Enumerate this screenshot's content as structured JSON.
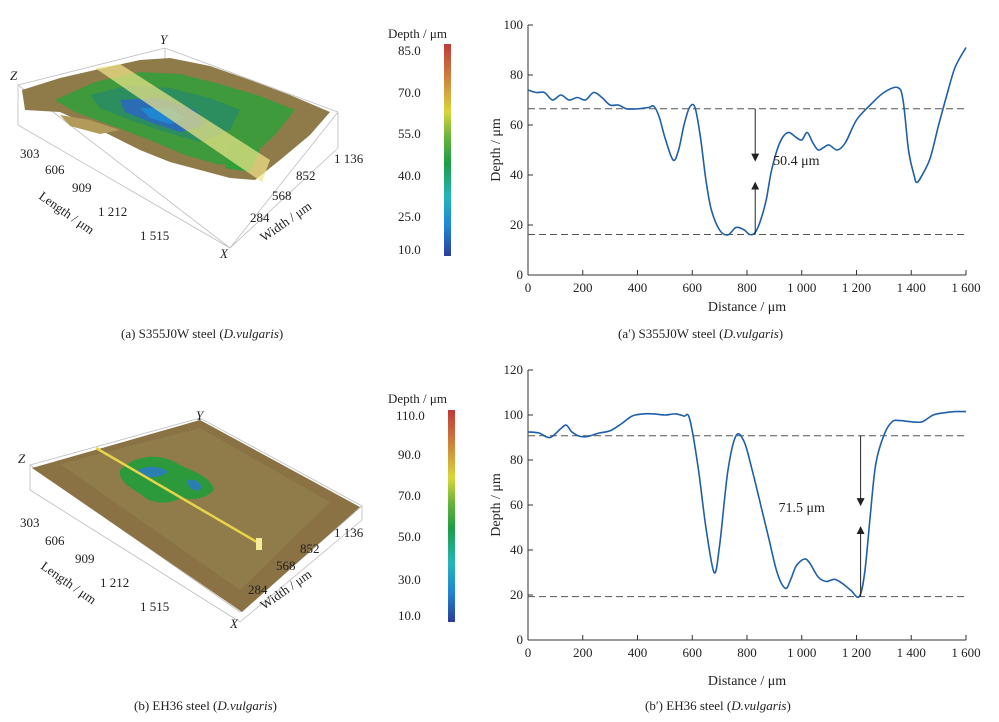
{
  "panels3d": [
    {
      "caption_pre": "(a) S355J0W steel (",
      "caption_em": "D.vulgaris",
      "caption_post": ")",
      "axis_z": "Z",
      "axis_y": "Y",
      "axis_x": "X",
      "length_label": "Length / μm",
      "width_label": "Width / μm",
      "length_ticks": [
        "303",
        "606",
        "909",
        "1 212",
        "1 515"
      ],
      "width_ticks": [
        "284",
        "568",
        "852",
        "1 136"
      ],
      "colorbar_title": "Depth / μm",
      "colorbar_ticks": [
        "85.0",
        "70.0",
        "55.0",
        "40.0",
        "25.0",
        "10.0"
      ]
    },
    {
      "caption_pre": "(b) EH36 steel (",
      "caption_em": "D.vulgaris",
      "caption_post": ")",
      "axis_z": "Z",
      "axis_y": "Y",
      "axis_x": "X",
      "length_label": "Length / μm",
      "width_label": "Width / μm",
      "length_ticks": [
        "303",
        "606",
        "909",
        "1 212",
        "1 515"
      ],
      "width_ticks": [
        "284",
        "568",
        "852",
        "1 136"
      ],
      "colorbar_title": "Depth / μm",
      "colorbar_ticks": [
        "110.0",
        "90.0",
        "70.0",
        "50.0",
        "30.0",
        "10.0"
      ]
    }
  ],
  "chart_data": [
    {
      "type": "line",
      "caption_pre": "(a′) S355J0W steel (",
      "caption_em": "D.vulgaris",
      "caption_post": ")",
      "xlabel": "Distance / μm",
      "ylabel": "Depth / μm",
      "xlim": [
        0,
        1600
      ],
      "ylim": [
        0,
        100
      ],
      "xticks": [
        0,
        200,
        400,
        600,
        800,
        1000,
        1200,
        1400,
        1600
      ],
      "xtick_labels": [
        "0",
        "200",
        "400",
        "600",
        "800",
        "1 000",
        "1 200",
        "1 400",
        "1 600"
      ],
      "yticks": [
        0,
        20,
        40,
        60,
        80,
        100
      ],
      "ytick_labels": [
        "0",
        "20",
        "40",
        "60",
        "80",
        "100"
      ],
      "grid": false,
      "ref_lines": [
        66.5,
        16.2
      ],
      "arrow_x": 830,
      "annotation": "50.4 μm",
      "annotation_pos": [
        980,
        44
      ],
      "series": [
        {
          "x": [
            0,
            30,
            60,
            90,
            120,
            150,
            180,
            210,
            240,
            270,
            300,
            330,
            360,
            400,
            440,
            460,
            480,
            500,
            530,
            550,
            570,
            590,
            610,
            630,
            650,
            670,
            700,
            730,
            760,
            790,
            810,
            830,
            850,
            870,
            890,
            920,
            950,
            980,
            1000,
            1020,
            1040,
            1060,
            1080,
            1100,
            1130,
            1160,
            1200,
            1250,
            1300,
            1350,
            1370,
            1390,
            1410,
            1420,
            1440,
            1470,
            1500,
            1530,
            1560,
            1600
          ],
          "y": [
            74,
            73,
            73,
            70,
            72,
            70,
            71,
            70,
            73,
            71,
            68,
            68,
            66.5,
            66.5,
            67,
            67.5,
            63,
            55,
            46,
            50,
            60,
            67,
            67,
            55,
            38,
            26,
            18,
            16,
            19,
            18,
            16.2,
            17,
            22,
            30,
            42,
            53,
            57,
            55,
            54,
            57,
            53,
            50,
            51,
            52,
            50,
            53,
            62,
            68,
            73,
            75,
            70,
            50,
            40,
            37,
            40,
            47,
            60,
            72,
            83,
            91
          ]
        }
      ]
    },
    {
      "type": "line",
      "caption_pre": "(b′) EH36 steel (",
      "caption_em": "D.vulgaris",
      "caption_post": ")",
      "xlabel": "Distance / μm",
      "ylabel": "Depth / μm",
      "xlim": [
        0,
        1600
      ],
      "ylim": [
        0,
        120
      ],
      "xticks": [
        0,
        200,
        400,
        600,
        800,
        1000,
        1200,
        1400,
        1600
      ],
      "xtick_labels": [
        "0",
        "200",
        "400",
        "600",
        "800",
        "1 000",
        "1 200",
        "1 400",
        "1 600"
      ],
      "yticks": [
        0,
        20,
        40,
        60,
        80,
        100,
        120
      ],
      "ytick_labels": [
        "0",
        "20",
        "40",
        "60",
        "80",
        "100",
        "120"
      ],
      "grid": false,
      "ref_lines": [
        90.8,
        19.3
      ],
      "arrow_x": 1215,
      "annotation": "71.5 μm",
      "annotation_pos": [
        1000,
        57
      ],
      "series": [
        {
          "x": [
            0,
            40,
            80,
            120,
            140,
            160,
            190,
            220,
            260,
            300,
            340,
            380,
            420,
            460,
            500,
            540,
            570,
            590,
            620,
            650,
            680,
            700,
            730,
            760,
            790,
            820,
            850,
            880,
            910,
            940,
            960,
            980,
            1010,
            1030,
            1060,
            1090,
            1120,
            1150,
            1180,
            1210,
            1230,
            1250,
            1270,
            1300,
            1330,
            1360,
            1400,
            1440,
            1480,
            1520,
            1560,
            1600
          ],
          "y": [
            92.5,
            92,
            90,
            94,
            95.5,
            92.5,
            90.5,
            90.5,
            92,
            93,
            96,
            99.5,
            100.5,
            100.5,
            100,
            100.5,
            99.5,
            98.5,
            78,
            50,
            30,
            42,
            75,
            90.8,
            88,
            75,
            60,
            45,
            30,
            23,
            27,
            33,
            36,
            34,
            28,
            26,
            27,
            25,
            22,
            19.3,
            30,
            55,
            78,
            91,
            97,
            97.5,
            97,
            97,
            100,
            101,
            101.5,
            101.5
          ]
        }
      ]
    }
  ]
}
